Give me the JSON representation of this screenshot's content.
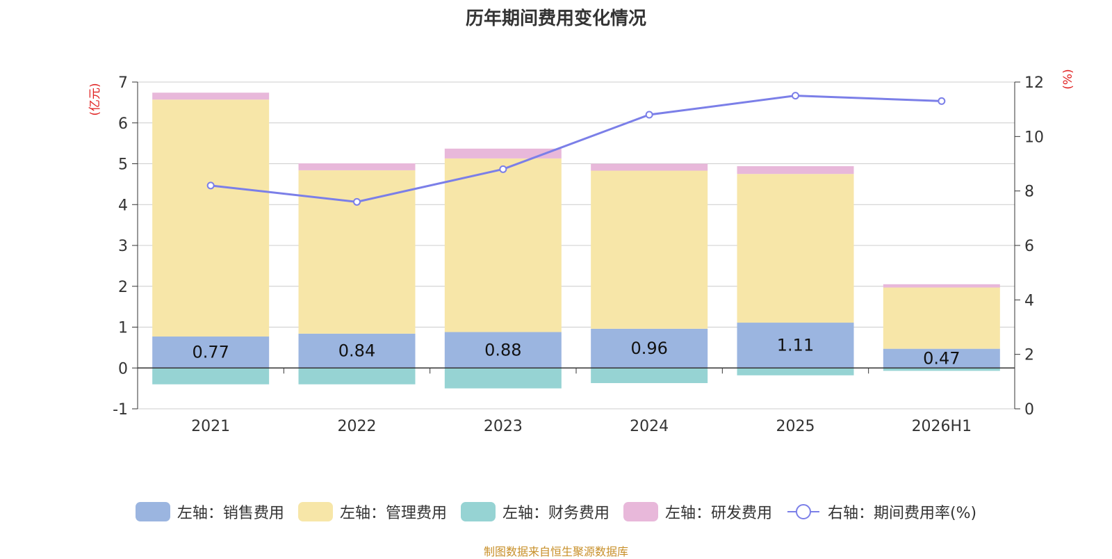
{
  "title": "历年期间费用变化情况",
  "source_note": "制图数据来自恒生聚源数据库",
  "chart_data": {
    "type": "bar",
    "stacked": true,
    "title": "历年期间费用变化情况",
    "categories": [
      "2021",
      "2022",
      "2023",
      "2024",
      "2025",
      "2026H1"
    ],
    "y_left": {
      "label": "(亿元)",
      "ylim": [
        -1,
        7
      ],
      "ticks": [
        "-1",
        "0",
        "1",
        "2",
        "3",
        "4",
        "5",
        "6",
        "7"
      ]
    },
    "y_right": {
      "label": "(%)",
      "ylim": [
        0,
        12
      ],
      "ticks": [
        "0",
        "2",
        "4",
        "6",
        "8",
        "10",
        "12"
      ]
    },
    "grid": true,
    "legend_position": "bottom",
    "series": [
      {
        "name": "左轴：销售费用",
        "axis": "left",
        "color": "#9bb5e0",
        "values": [
          0.77,
          0.84,
          0.88,
          0.96,
          1.11,
          0.47
        ],
        "labels": [
          "0.77",
          "0.84",
          "0.88",
          "0.96",
          "1.11",
          "0.47"
        ]
      },
      {
        "name": "左轴：管理费用",
        "axis": "left",
        "color": "#f7e6a8",
        "values": [
          5.8,
          4.0,
          4.25,
          3.87,
          3.64,
          1.5
        ]
      },
      {
        "name": "左轴：财务费用",
        "axis": "left",
        "color": "#96d3d3",
        "values": [
          -0.4,
          -0.4,
          -0.5,
          -0.37,
          -0.18,
          -0.07
        ]
      },
      {
        "name": "左轴：研发费用",
        "axis": "left",
        "color": "#e8b8da",
        "values": [
          0.17,
          0.17,
          0.24,
          0.17,
          0.19,
          0.08
        ]
      },
      {
        "name": "右轴：期间费用率(%)",
        "axis": "right",
        "type": "line",
        "color": "#7b7fe8",
        "values": [
          8.2,
          7.6,
          8.8,
          10.8,
          11.5,
          11.3
        ]
      }
    ]
  }
}
